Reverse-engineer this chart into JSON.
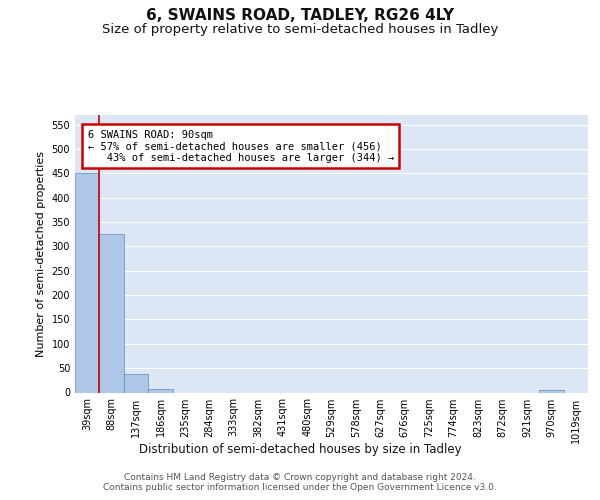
{
  "title": "6, SWAINS ROAD, TADLEY, RG26 4LY",
  "subtitle": "Size of property relative to semi-detached houses in Tadley",
  "xlabel": "Distribution of semi-detached houses by size in Tadley",
  "ylabel": "Number of semi-detached properties",
  "footnote": "Contains HM Land Registry data © Crown copyright and database right 2024.\nContains public sector information licensed under the Open Government Licence v3.0.",
  "bin_labels": [
    "39sqm",
    "88sqm",
    "137sqm",
    "186sqm",
    "235sqm",
    "284sqm",
    "333sqm",
    "382sqm",
    "431sqm",
    "480sqm",
    "529sqm",
    "578sqm",
    "627sqm",
    "676sqm",
    "725sqm",
    "774sqm",
    "823sqm",
    "872sqm",
    "921sqm",
    "970sqm",
    "1019sqm"
  ],
  "bar_values": [
    450,
    325,
    37,
    7,
    0,
    0,
    0,
    0,
    0,
    0,
    0,
    0,
    0,
    0,
    0,
    0,
    0,
    0,
    0,
    5,
    0
  ],
  "bar_color": "#aec6e8",
  "bar_edgecolor": "#5a8fc0",
  "property_line_x": 0.5,
  "property_line_color": "#cc0000",
  "annotation_line1": "6 SWAINS ROAD: 90sqm",
  "annotation_line2": "← 57% of semi-detached houses are smaller (456)",
  "annotation_line3": "43% of semi-detached houses are larger (344) →",
  "annotation_box_color": "#ffffff",
  "annotation_box_edgecolor": "#cc0000",
  "ylim": [
    0,
    570
  ],
  "yticks": [
    0,
    50,
    100,
    150,
    200,
    250,
    300,
    350,
    400,
    450,
    500,
    550
  ],
  "axes_background": "#dce6f5",
  "grid_color": "#ffffff",
  "title_fontsize": 11,
  "subtitle_fontsize": 9.5,
  "ylabel_fontsize": 8,
  "xlabel_fontsize": 8.5,
  "footnote_fontsize": 6.5,
  "tick_fontsize": 7
}
